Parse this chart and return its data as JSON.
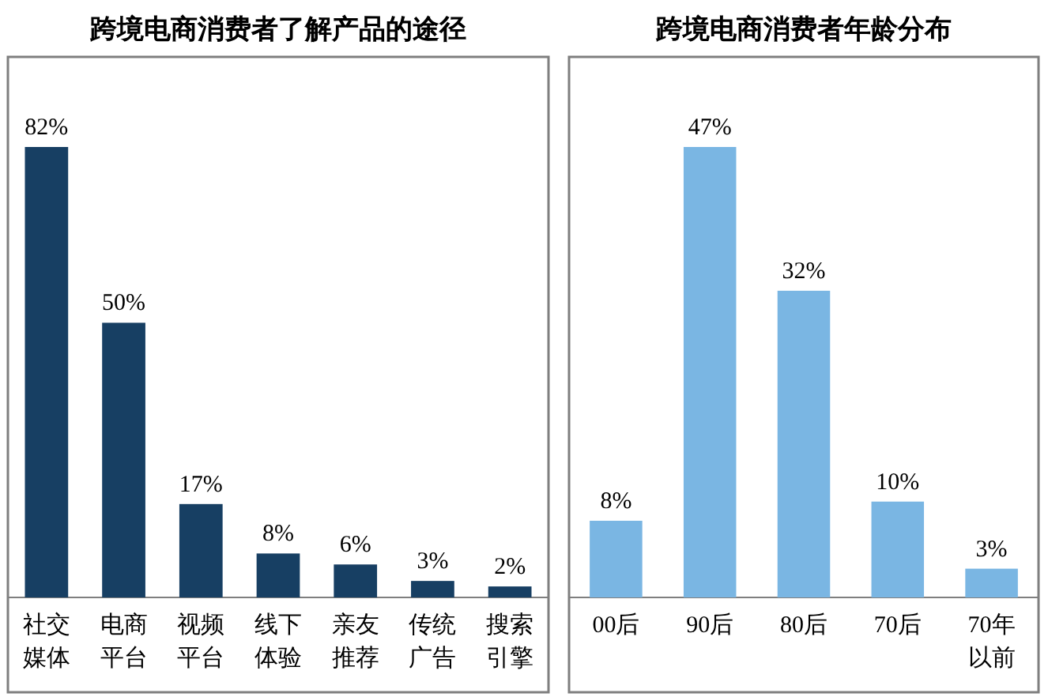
{
  "chart_data": [
    {
      "type": "bar",
      "title": "跨境电商消费者了解产品的途径",
      "categories": [
        "社交媒体",
        "电商平台",
        "视频平台",
        "线下体验",
        "亲友推荐",
        "传统广告",
        "搜索引擎"
      ],
      "values": [
        82,
        50,
        17,
        8,
        6,
        3,
        2
      ],
      "value_labels": [
        "82%",
        "50%",
        "17%",
        "8%",
        "6%",
        "3%",
        "2%"
      ],
      "color": "#173f63"
    },
    {
      "type": "bar",
      "title": "跨境电商消费者年龄分布",
      "categories": [
        "00后",
        "90后",
        "80后",
        "70后",
        "70年以前"
      ],
      "values": [
        8,
        47,
        32,
        10,
        3
      ],
      "value_labels": [
        "8%",
        "47%",
        "32%",
        "10%",
        "3%"
      ],
      "color": "#7ab6e3"
    }
  ]
}
